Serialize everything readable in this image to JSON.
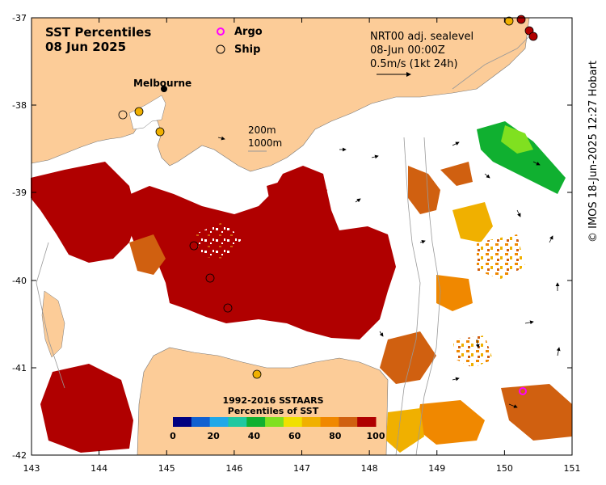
{
  "title": {
    "line1": "SST Percentiles",
    "line2": "08 Jun 2025"
  },
  "legend_markers": {
    "argo": "Argo",
    "ship": "Ship"
  },
  "current_info": {
    "line1": "NRT00 adj. sealevel",
    "line2": "08-Jun 00:00Z",
    "line3": "0.5m/s (1kt 24h)"
  },
  "contours": {
    "c200": "200m",
    "c1000": "1000m"
  },
  "place": "Melbourne",
  "colorbar": {
    "title1": "1992-2016 SSTAARS",
    "title2": "Percentiles of SST",
    "ticks": [
      "0",
      "20",
      "40",
      "60",
      "80",
      "100"
    ],
    "colors": [
      "#000080",
      "#1060d0",
      "#20a8e8",
      "#20c8a0",
      "#10b030",
      "#80e020",
      "#f0e000",
      "#f0b000",
      "#f08800",
      "#d06010",
      "#b00000"
    ]
  },
  "axes": {
    "lon_ticks": [
      "143",
      "144",
      "145",
      "146",
      "147",
      "148",
      "149",
      "150",
      "151"
    ],
    "lat_ticks": [
      "-37",
      "-38",
      "-39",
      "-40",
      "-41",
      "-42"
    ]
  },
  "credit": "© IMOS 18-Jun-2025 12:27 Hobart",
  "colors": {
    "land": "#fccc98",
    "ocean_missing": "#ffffff",
    "hot": "#b00000",
    "warm": "#d06010",
    "argo_marker": "#ff00ff"
  }
}
